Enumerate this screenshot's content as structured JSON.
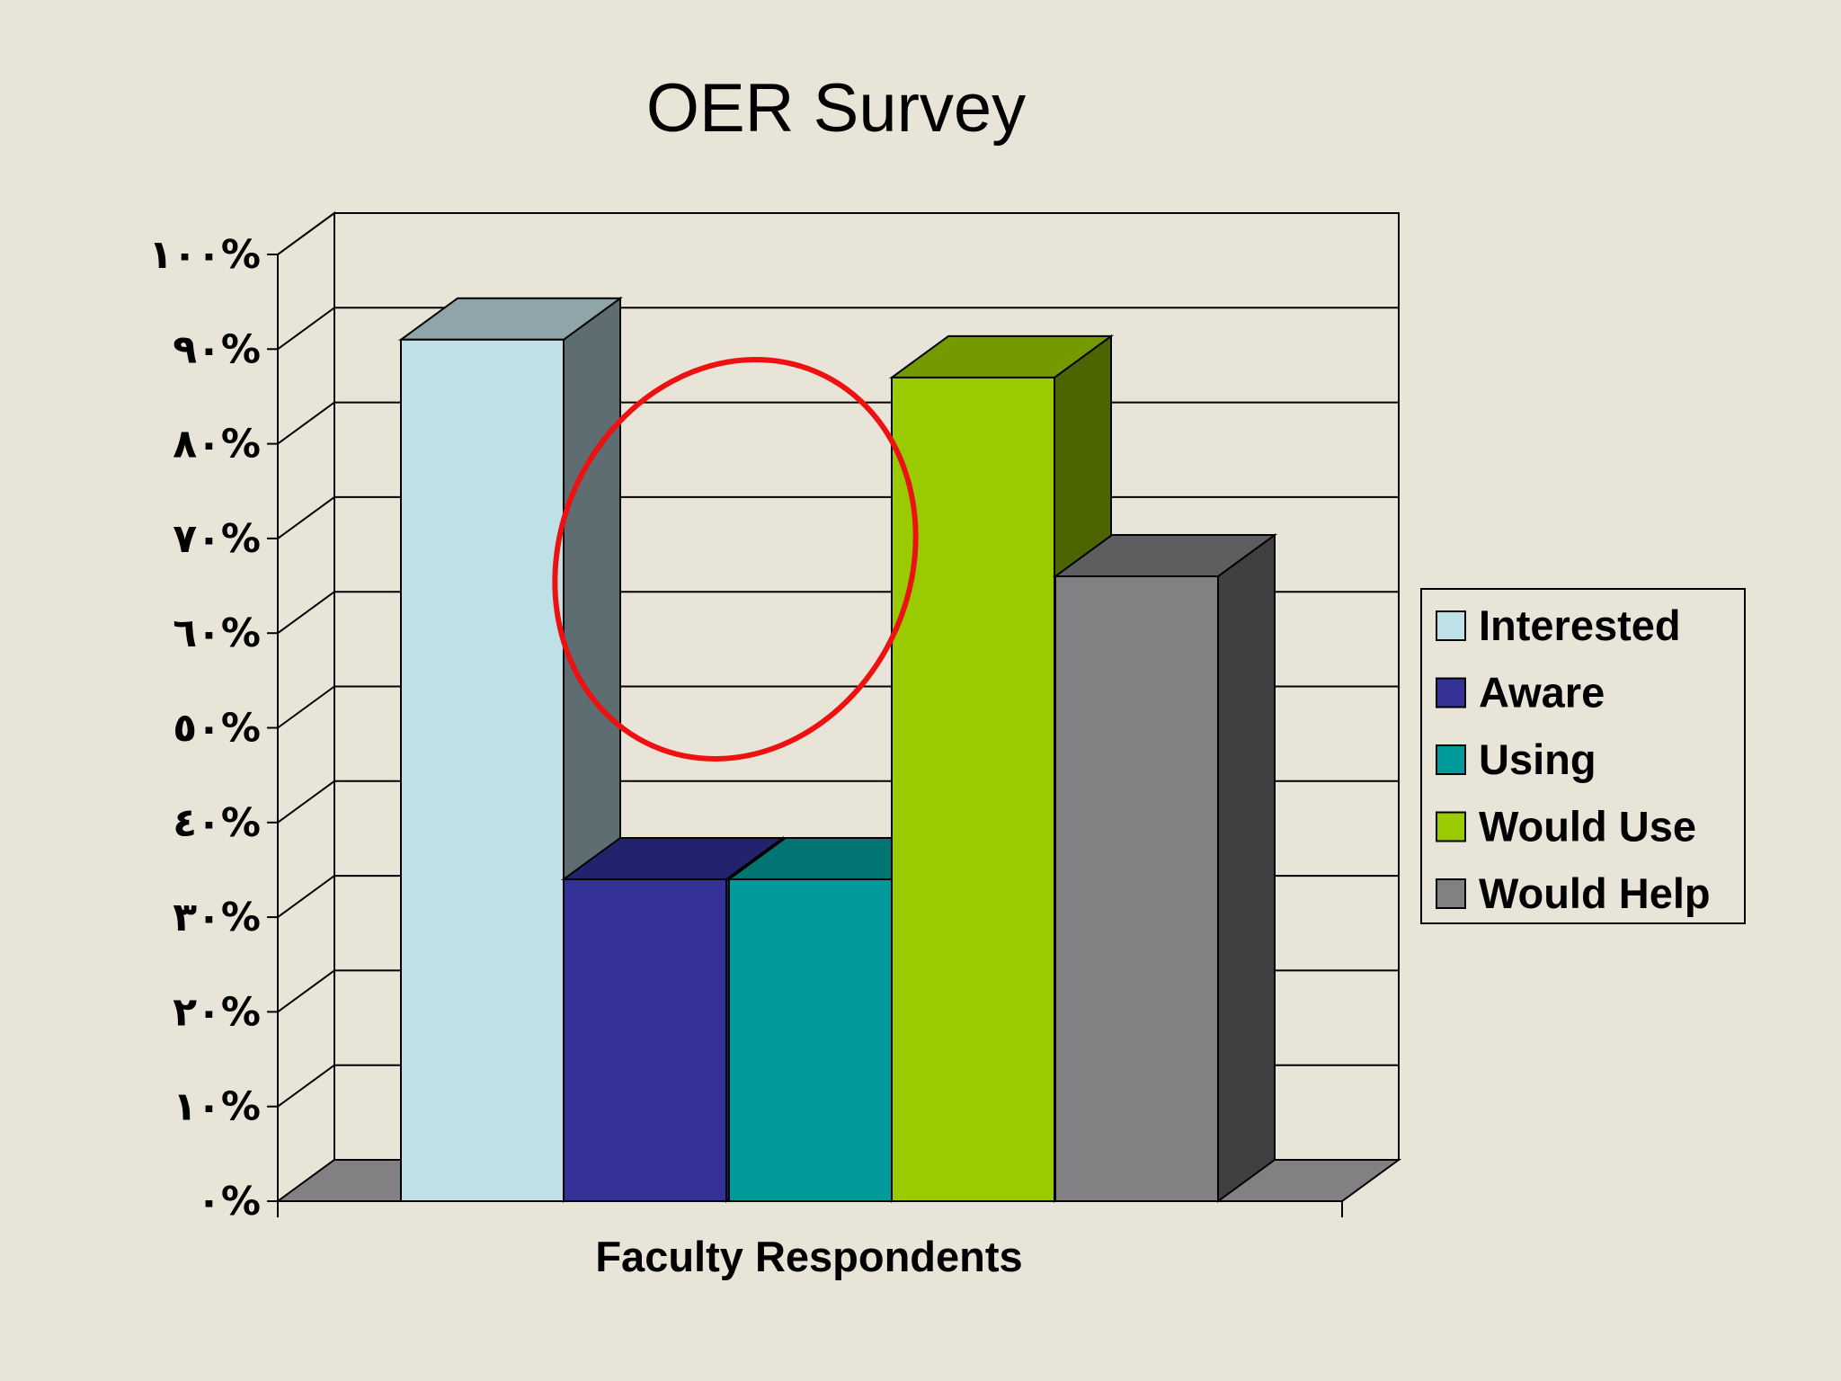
{
  "chart_data": {
    "type": "bar",
    "title": "OER Survey",
    "xlabel": "Faculty Respondents",
    "ylabel": "",
    "categories": [
      "Faculty Respondents"
    ],
    "series": [
      {
        "name": "Interested",
        "values": [
          91
        ],
        "color": "#bde1e6",
        "side_color": "#5d6d72",
        "top_color": "#8fa5aa"
      },
      {
        "name": "Aware",
        "values": [
          34
        ],
        "color": "#343296",
        "side_color": "#23226e",
        "top_color": "#23226e"
      },
      {
        "name": "Using",
        "values": [
          34
        ],
        "color": "#019a9a",
        "side_color": "#016e6e",
        "top_color": "#017474"
      },
      {
        "name": "Would Use",
        "values": [
          87
        ],
        "color": "#9acb00",
        "side_color": "#4d6500",
        "top_color": "#759a00"
      },
      {
        "name": "Would Help",
        "values": [
          66
        ],
        "color": "#828083",
        "side_color": "#403f42",
        "top_color": "#5e5d60"
      }
    ],
    "ylim": [
      0,
      100
    ],
    "yticks": [
      0,
      10,
      20,
      30,
      40,
      50,
      60,
      70,
      80,
      90,
      100
    ],
    "ytick_labels": [
      "٠%",
      "١٠%",
      "٢٠%",
      "٣٠%",
      "٤٠%",
      "٥٠%",
      "٦٠%",
      "٧٠%",
      "٨٠%",
      "٩٠%",
      "١٠٠%"
    ],
    "grid": true,
    "legend_position": "right",
    "annotation": "red-ellipse-circling-aware-and-using-gap",
    "annotation_color": "#ee1111",
    "floor_color": "#828083",
    "background_color": "#e8e4d8",
    "wall_color": "#e8e4d8"
  }
}
